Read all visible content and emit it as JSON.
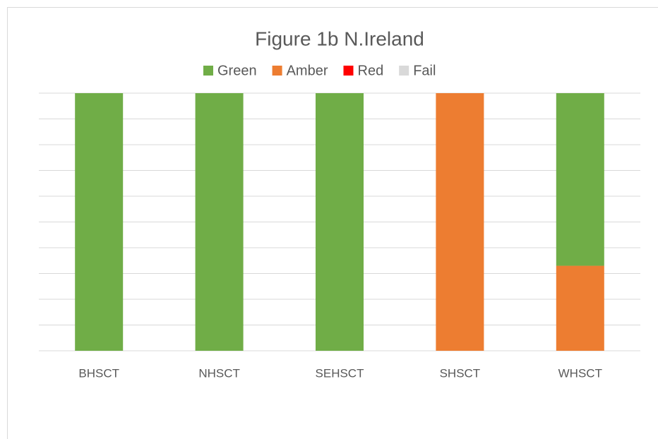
{
  "chart_data": {
    "type": "stacked_bar",
    "title": "Figure 1b N.Ireland",
    "categories": [
      "BHSCT",
      "NHSCT",
      "SEHSCT",
      "SHSCT",
      "WHSCT"
    ],
    "series": [
      {
        "name": "Green",
        "color": "#70ad47",
        "values": [
          100,
          100,
          100,
          0,
          67
        ]
      },
      {
        "name": "Amber",
        "color": "#ed7d31",
        "values": [
          0,
          0,
          0,
          100,
          33
        ]
      },
      {
        "name": "Red",
        "color": "#ff0000",
        "values": [
          0,
          0,
          0,
          0,
          0
        ]
      },
      {
        "name": "Fail",
        "color": "#d9d9d9",
        "values": [
          0,
          0,
          0,
          0,
          0
        ]
      }
    ],
    "ylim": [
      0,
      100
    ],
    "yticks": [
      0,
      10,
      20,
      30,
      40,
      50,
      60,
      70,
      80,
      90,
      100
    ],
    "grid": true,
    "legend": "top"
  }
}
